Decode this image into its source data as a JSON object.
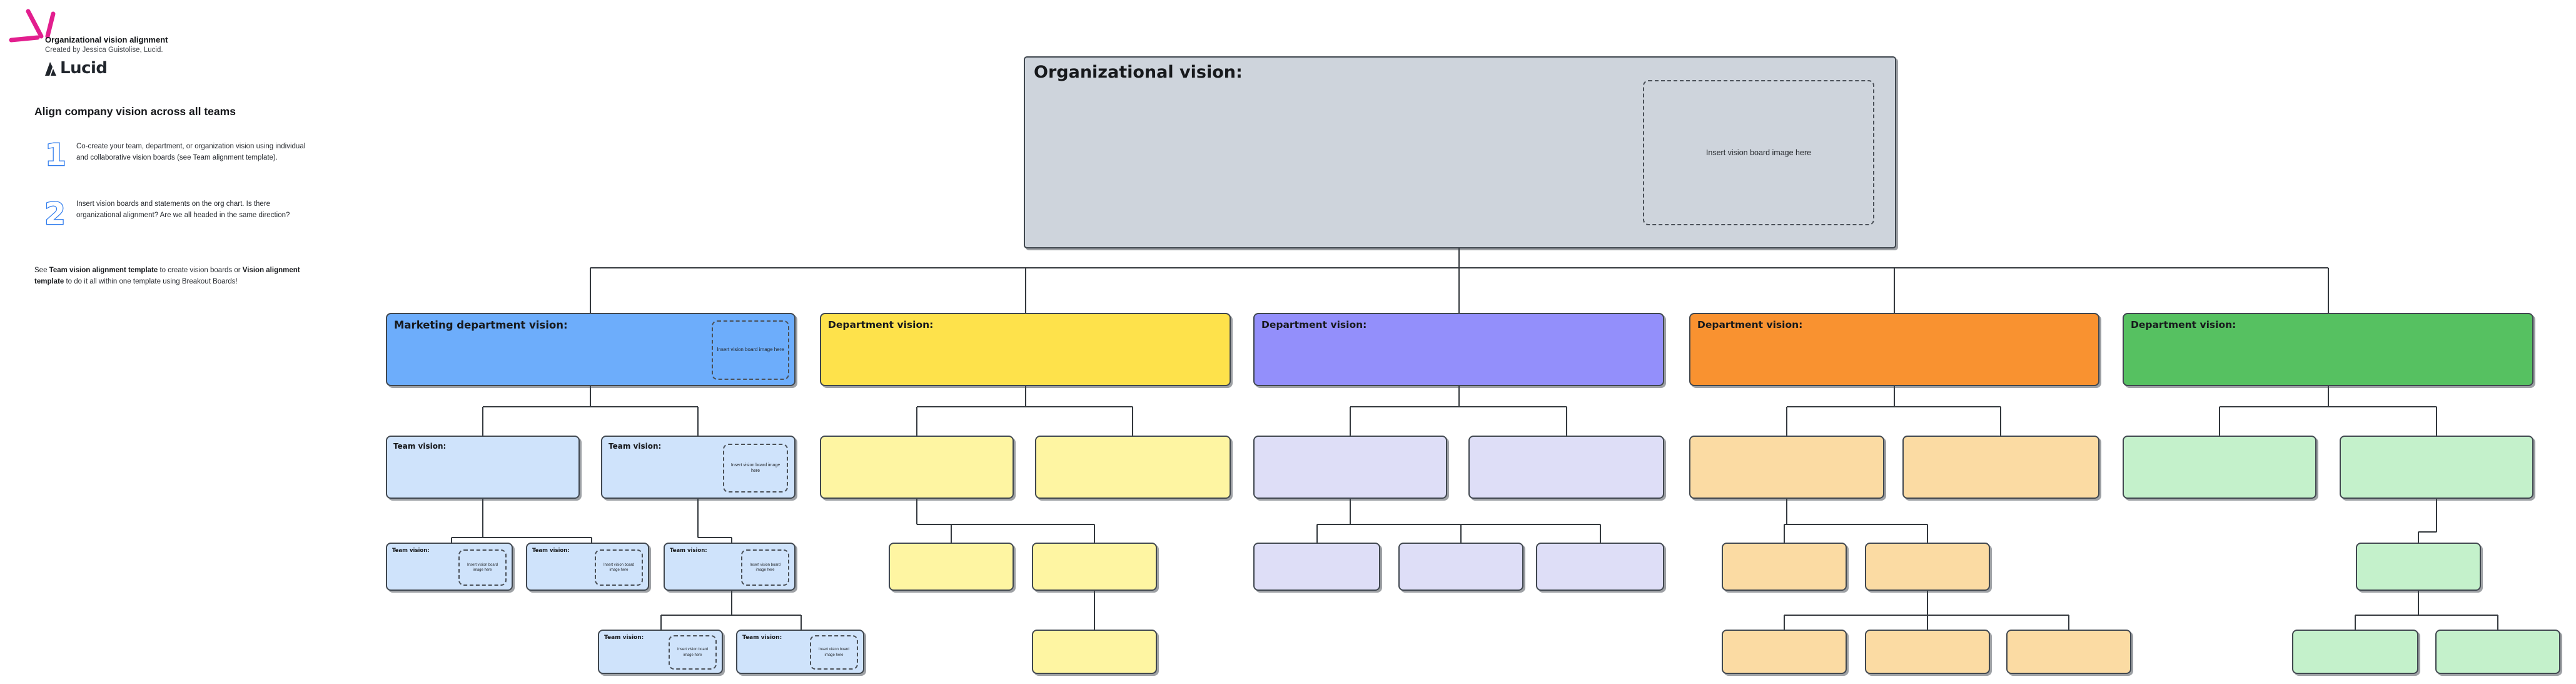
{
  "sidebar": {
    "title": "Organizational vision alignment",
    "byline": "Created by Jessica Guistolise, Lucid.",
    "logo_text": "Lucid",
    "heading": "Align company vision across all teams",
    "steps": [
      {
        "num": "1",
        "text": "Co-create your team, department, or organization vision using individual and collaborative vision boards (see Team alignment template)."
      },
      {
        "num": "2",
        "text": "Insert vision boards and statements on the org chart. Is there organizational alignment? Are we all headed in the same direction?"
      }
    ],
    "footer": {
      "prefix": "See ",
      "bold1": "Team vision alignment template",
      "middle": " to create vision boards or ",
      "bold2": "Vision alignment template",
      "suffix": " to do it all within one template using Breakout Boards!"
    }
  },
  "diagram": {
    "org_label": "Organizational vision:",
    "marketing_label": "Marketing department vision:",
    "dept_label": "Department vision:",
    "team_label": "Team vision:",
    "insert_text": "Insert vision board image here",
    "structure": {
      "levels": [
        "Organizational vision",
        "Department visions",
        "Team visions level 1",
        "Team visions level 2",
        "Team visions level 3"
      ],
      "branches": [
        {
          "department": "Marketing department vision:",
          "color": "blue",
          "level1_boxes": 2,
          "level2_boxes": 3,
          "level3_boxes": 2
        },
        {
          "department": "Department vision:",
          "color": "yellow",
          "level1_boxes": 2,
          "level2_boxes": 2,
          "level3_boxes": 1
        },
        {
          "department": "Department vision:",
          "color": "purple",
          "level1_boxes": 2,
          "level2_boxes": 3,
          "level3_boxes": 0
        },
        {
          "department": "Department vision:",
          "color": "orange",
          "level1_boxes": 2,
          "level2_boxes": 2,
          "level3_boxes": 3
        },
        {
          "department": "Department vision:",
          "color": "green",
          "level1_boxes": 2,
          "level2_boxes": 1,
          "level3_boxes": 2
        }
      ]
    },
    "colors": {
      "org_gray": "#CED4DC",
      "blue": "#6DADFB",
      "yellow": "#FEE24B",
      "purple": "#938FFB",
      "orange": "#F99230",
      "green": "#56C161",
      "light_blue": "#CFE3FB",
      "light_yellow": "#FEF5A2",
      "light_purple": "#DEDEF7",
      "light_orange": "#FBDBA3",
      "light_green": "#C4F1CB",
      "accent_pink": "#E21E8E",
      "step_blue": "#2F7CED",
      "line": "#33383D"
    }
  }
}
